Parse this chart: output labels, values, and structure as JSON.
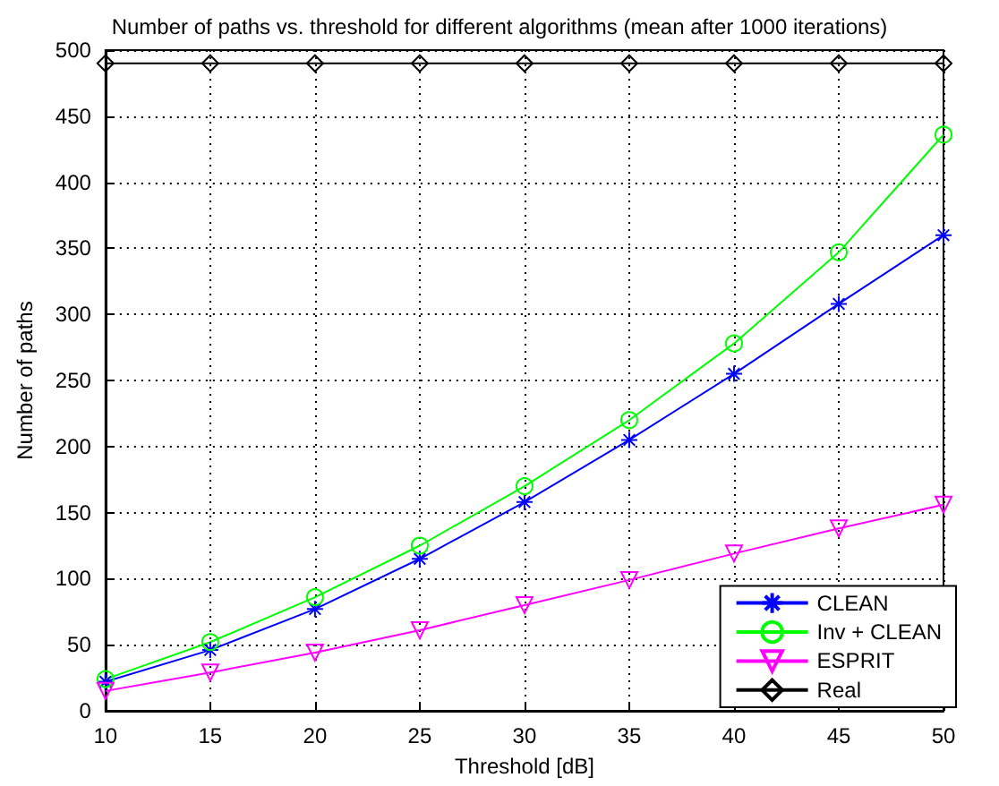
{
  "chart_data": {
    "type": "line",
    "title": "Number of paths vs. threshold for different algorithms (mean after 1000 iterations)",
    "xlabel": "Threshold [dB]",
    "ylabel": "Number of paths",
    "x": [
      10,
      15,
      20,
      25,
      30,
      35,
      40,
      45,
      50
    ],
    "series": [
      {
        "name": "CLEAN",
        "color": "#0000ff",
        "marker": "cross",
        "values": [
          22,
          46,
          77,
          115,
          158,
          205,
          255,
          308,
          360
        ]
      },
      {
        "name": "Inv + CLEAN",
        "color": "#00ff00",
        "marker": "circle",
        "values": [
          24,
          52,
          86,
          125,
          170,
          220,
          278,
          347,
          436
        ]
      },
      {
        "name": "ESPRIT",
        "color": "#ff00ff",
        "marker": "triangle",
        "values": [
          15,
          29,
          44,
          61,
          80,
          99,
          119,
          138,
          156
        ]
      },
      {
        "name": "Real",
        "color": "#000000",
        "marker": "diamond",
        "values": [
          490,
          490,
          490,
          490,
          490,
          490,
          490,
          490,
          490
        ]
      }
    ],
    "xlim": [
      10,
      50
    ],
    "xticks": [
      10,
      15,
      20,
      25,
      30,
      35,
      40,
      45,
      50
    ],
    "ylim": [
      0,
      500
    ],
    "yticks": [
      0,
      50,
      100,
      150,
      200,
      250,
      300,
      350,
      400,
      450,
      500
    ],
    "grid": true,
    "legend": "bottom right",
    "line_style": "solid"
  }
}
